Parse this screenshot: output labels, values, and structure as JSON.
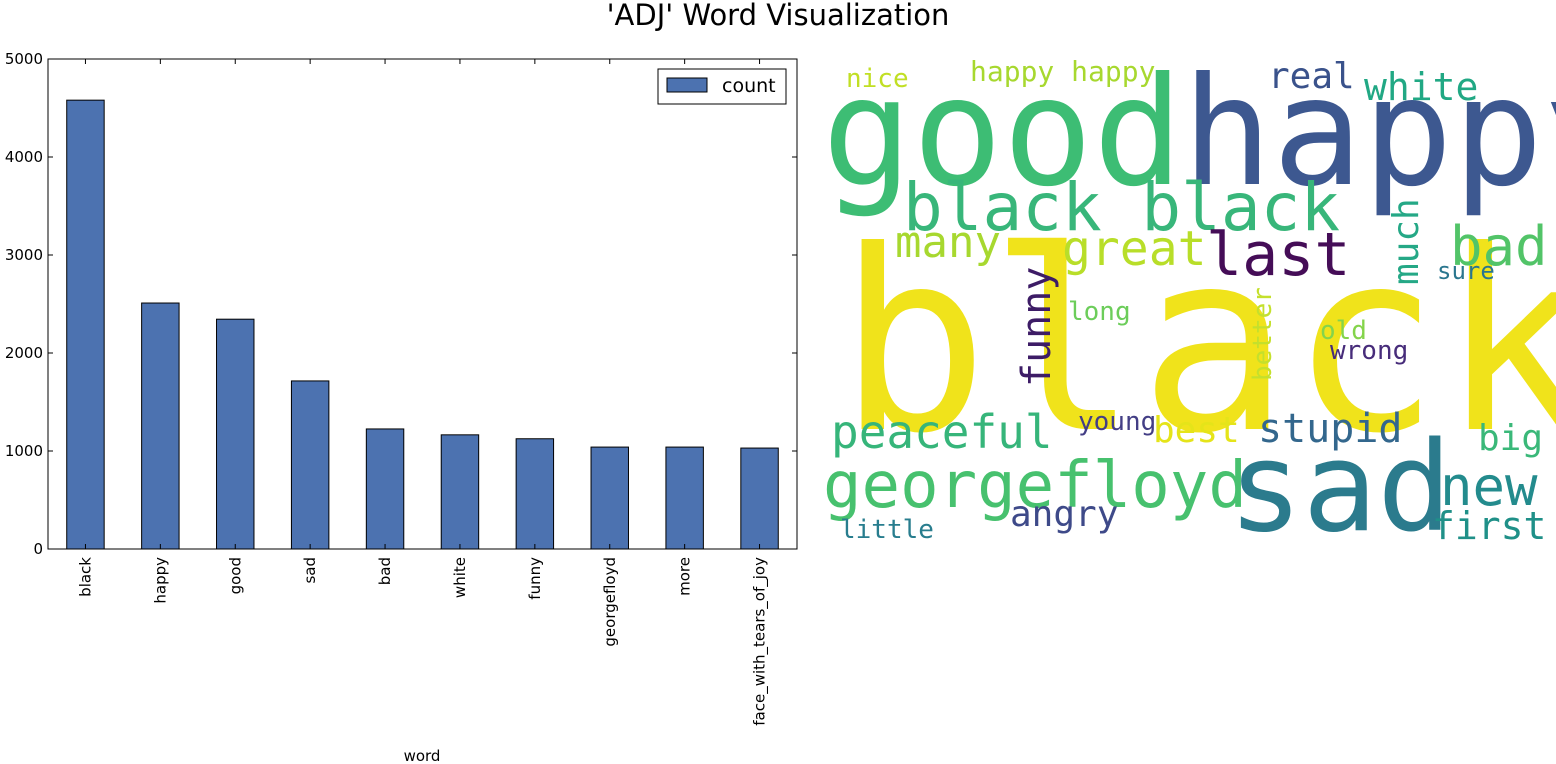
{
  "figure": {
    "title": "'ADJ' Word Visualization"
  },
  "chart_data": {
    "type": "bar",
    "categories": [
      "black",
      "happy",
      "good",
      "sad",
      "bad",
      "white",
      "funny",
      "georgefloyd",
      "more",
      "face_with_tears_of_joy"
    ],
    "series": [
      {
        "name": "count",
        "values": [
          4580,
          2510,
          2345,
          1715,
          1225,
          1165,
          1125,
          1040,
          1040,
          1030
        ],
        "color": "#4c72b0"
      }
    ],
    "xlabel": "word",
    "ylabel": "",
    "ylim": [
      0,
      5000
    ],
    "yticks": [
      0,
      1000,
      2000,
      3000,
      4000,
      5000
    ],
    "legend": {
      "position": "top-right",
      "label": "count"
    },
    "grid": false
  },
  "wordcloud": {
    "words": [
      {
        "text": "black",
        "color": "#f0e31b"
      },
      {
        "text": "good",
        "color": "#3dbd74"
      },
      {
        "text": "happy",
        "color": "#3d5890"
      },
      {
        "text": "black black",
        "color": "#38b67a"
      },
      {
        "text": "sad",
        "color": "#2b7b8d"
      },
      {
        "text": "georgefloyd",
        "color": "#47c16e"
      },
      {
        "text": "peaceful",
        "color": "#36b57a"
      },
      {
        "text": "great",
        "color": "#b8de29"
      },
      {
        "text": "last",
        "color": "#450d57"
      },
      {
        "text": "many",
        "color": "#a7d82f"
      },
      {
        "text": "bad",
        "color": "#52c468"
      },
      {
        "text": "new",
        "color": "#238b8d"
      },
      {
        "text": "stupid",
        "color": "#33678d"
      },
      {
        "text": "funny",
        "color": "#3d1c66"
      },
      {
        "text": "much",
        "color": "#25a886"
      },
      {
        "text": "white",
        "color": "#21a884"
      },
      {
        "text": "real",
        "color": "#3a528b"
      },
      {
        "text": "first",
        "color": "#1f9088"
      },
      {
        "text": "best",
        "color": "#e5e419"
      },
      {
        "text": "angry",
        "color": "#3e4a89"
      },
      {
        "text": "big",
        "color": "#3ab879"
      },
      {
        "text": "happy happy",
        "color": "#a7d82f"
      },
      {
        "text": "nice",
        "color": "#c1df24"
      },
      {
        "text": "little",
        "color": "#287d8e"
      },
      {
        "text": "young",
        "color": "#433e85"
      },
      {
        "text": "wrong",
        "color": "#472c7a"
      },
      {
        "text": "better",
        "color": "#c4e02c"
      },
      {
        "text": "long",
        "color": "#6ccd5a"
      },
      {
        "text": "old",
        "color": "#84d44b"
      },
      {
        "text": "sure",
        "color": "#2a768e"
      }
    ]
  }
}
